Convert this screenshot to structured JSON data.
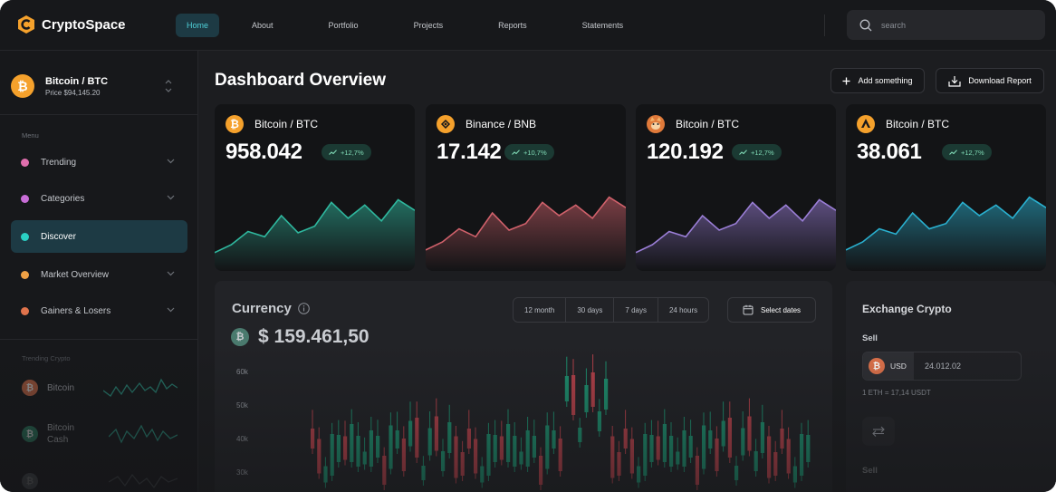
{
  "app": {
    "name": "CryptoSpace"
  },
  "nav": {
    "items": [
      "Home",
      "About",
      "Portfolio",
      "Projects",
      "Reports",
      "Statements"
    ],
    "active": "Home"
  },
  "search": {
    "placeholder": "search"
  },
  "sidebar": {
    "asset": {
      "name": "Bitcoin / BTC",
      "price": "Price $94,145.20"
    },
    "menu_label": "Menu",
    "menu": [
      {
        "label": "Trending",
        "color": "#e06fae"
      },
      {
        "label": "Categories",
        "color": "#c86dd7"
      },
      {
        "label": "Discover",
        "color": "#2ad0c4"
      },
      {
        "label": "Market Overview",
        "color": "#f0a145"
      },
      {
        "label": "Gainers & Losers",
        "color": "#e0734c"
      }
    ],
    "active_menu": "Discover",
    "trending_label": "Trending Crypto",
    "trending": [
      {
        "name": "Bitcoin"
      },
      {
        "name": "Bitcoin Cash"
      }
    ]
  },
  "main": {
    "title": "Dashboard Overview",
    "add_button": "Add something",
    "download_button": "Download Report"
  },
  "cards": [
    {
      "name": "Bitcoin / BTC",
      "value": "958.042",
      "change": "+12,7%",
      "icon": "bitcoin-icon",
      "color": "#2fb79e",
      "series": [
        18,
        24,
        34,
        30,
        46,
        33,
        38,
        56,
        44,
        54,
        42,
        58,
        50
      ]
    },
    {
      "name": "Binance / BNB",
      "value": "17.142",
      "change": "+10,7%",
      "icon": "binance-icon",
      "color": "#d0616b",
      "series": [
        20,
        26,
        36,
        30,
        48,
        35,
        40,
        56,
        46,
        54,
        44,
        60,
        52
      ]
    },
    {
      "name": "Bitcoin / BTC",
      "value": "120.192",
      "change": "+12,7%",
      "icon": "shiba-icon",
      "color": "#9a7ed6",
      "series": [
        18,
        24,
        34,
        30,
        46,
        35,
        40,
        56,
        44,
        54,
        42,
        58,
        50
      ]
    },
    {
      "name": "Bitcoin / BTC",
      "value": "38.061",
      "change": "+12,7%",
      "icon": "avalanche-icon",
      "color": "#2ab0cf",
      "series": [
        20,
        26,
        36,
        32,
        48,
        36,
        40,
        56,
        46,
        54,
        44,
        60,
        52
      ]
    }
  ],
  "currency": {
    "title": "Currency",
    "value": "$ 159.461,50",
    "ranges": [
      "12 month",
      "30 days",
      "7 days",
      "24 hours"
    ],
    "select_dates": "Select dates",
    "yaxis": [
      "60k",
      "50k",
      "40k",
      "30k"
    ]
  },
  "exchange": {
    "title": "Exchange Crypto",
    "sell_label": "Sell",
    "currency": "USD",
    "amount": "24.012.02",
    "rate": "1 ETH = 17,14 USDT",
    "sell_label_2": "Sell"
  }
}
